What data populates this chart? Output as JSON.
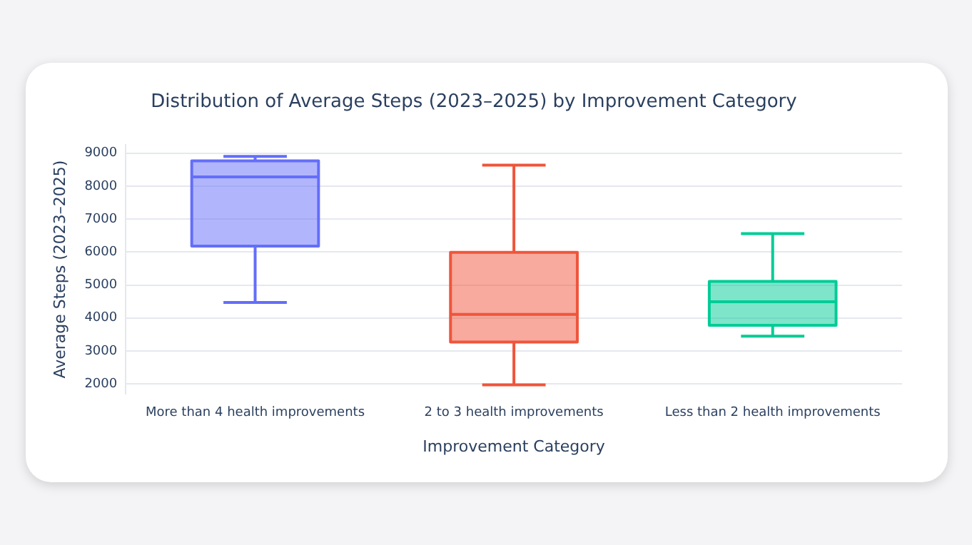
{
  "chart_data": {
    "type": "box",
    "title": "Distribution of Average Steps (2023–2025) by Improvement Category",
    "xlabel": "Improvement Category",
    "ylabel": "Average Steps (2023–2025)",
    "categories": [
      "More than 4 health improvements",
      "2 to 3 health improvements",
      "Less than 2 health improvements"
    ],
    "colors": [
      "#636efa",
      "#ef553b",
      "#00cc96"
    ],
    "boxes": [
      {
        "low": 4470,
        "q1": 6180,
        "median": 8280,
        "q3": 8770,
        "high": 8900
      },
      {
        "low": 1970,
        "q1": 3270,
        "median": 4110,
        "q3": 5990,
        "high": 8640
      },
      {
        "low": 3450,
        "q1": 3780,
        "median": 4490,
        "q3": 5110,
        "high": 6560
      }
    ],
    "ylim": [
      1700,
      9250
    ],
    "yticks": [
      2000,
      3000,
      4000,
      5000,
      6000,
      7000,
      8000,
      9000
    ],
    "grid": "y",
    "legend": false
  }
}
